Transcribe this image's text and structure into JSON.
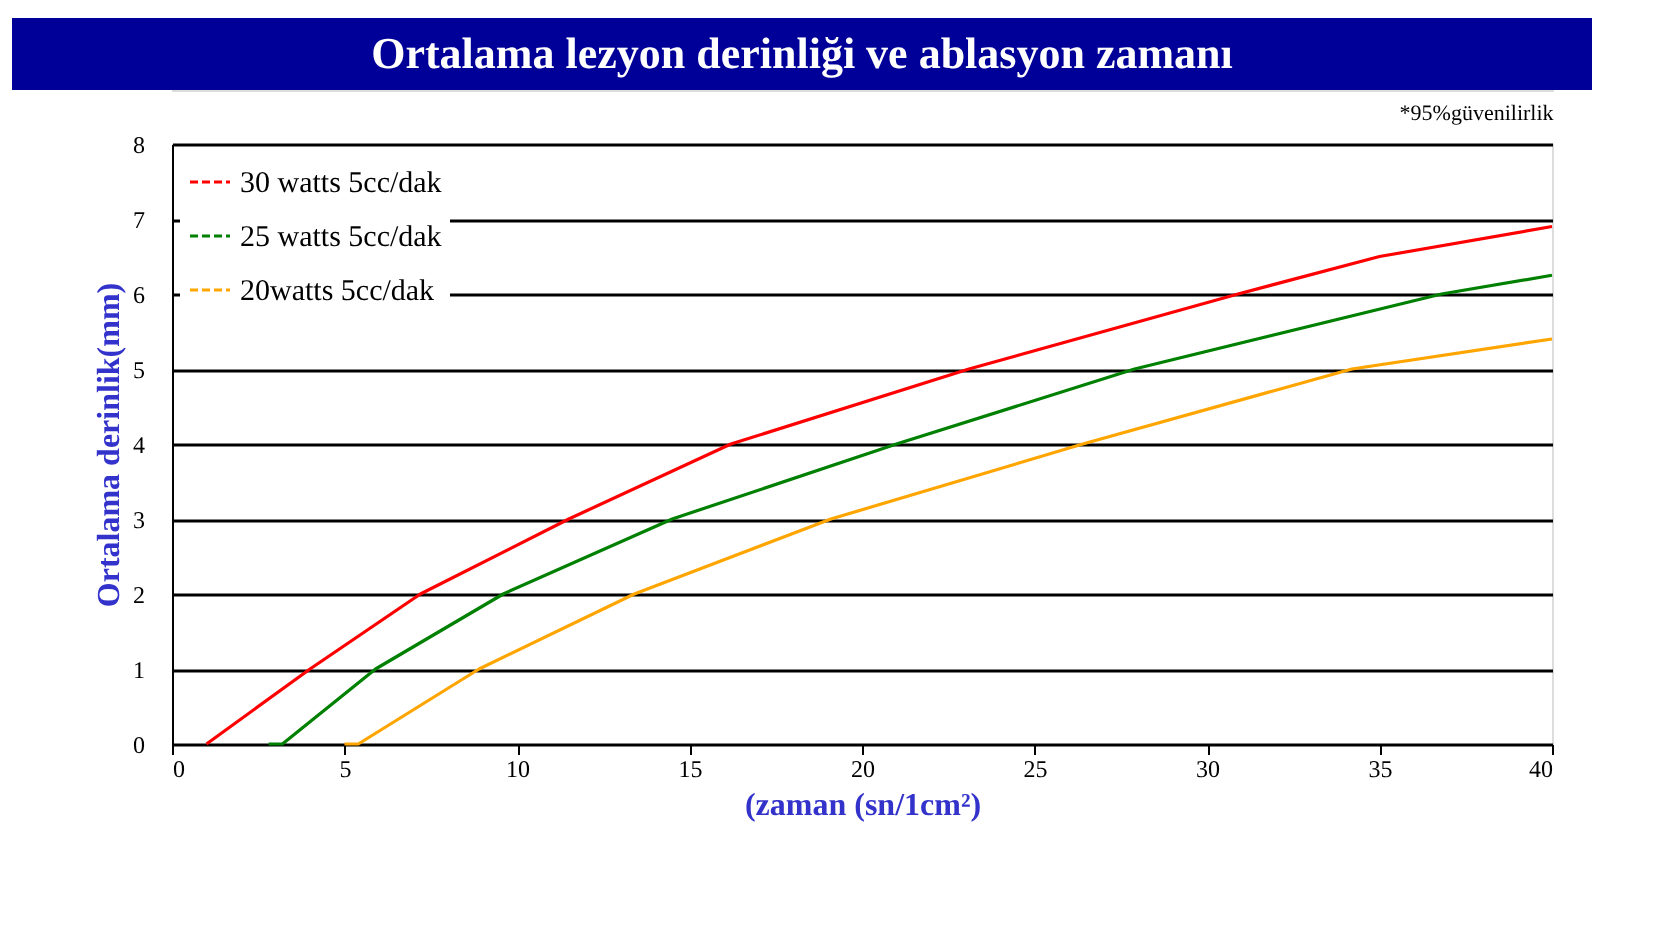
{
  "chart_data": {
    "type": "line",
    "title": "Ortalama lezyon derinliği ve ablasyon zamanı",
    "annotations": [
      "*95%güvenilirlik"
    ],
    "xlabel": "(zaman (sn/1cm²)",
    "ylabel": "Ortalama derinlik(mm)",
    "xlim": [
      0,
      40
    ],
    "xticks": [
      0,
      5,
      10,
      15,
      20,
      25,
      30,
      35,
      40
    ],
    "ylim": [
      0,
      8
    ],
    "yticks": [
      0,
      1,
      2,
      3,
      4,
      5,
      6,
      7,
      8
    ],
    "grid": "y",
    "legend": "top left",
    "line_style": "solid",
    "marker": "none",
    "series": [
      {
        "name": "30 watts 5cc/dak",
        "color": "#ff0000",
        "x": [
          1,
          4,
          7.2,
          11.5,
          16.2,
          23.1,
          30.9,
          35,
          40
        ],
        "values": [
          0,
          1,
          2,
          3,
          4,
          5,
          6,
          6.5,
          6.9
        ]
      },
      {
        "name": "25 watts 5cc/dak",
        "color": "#008000",
        "x": [
          2.8,
          3.2,
          5.9,
          9.6,
          14.5,
          21,
          27.9,
          36.8,
          40
        ],
        "values": [
          0,
          0,
          1,
          2,
          3,
          4,
          5,
          6,
          6.25
        ]
      },
      {
        "name": "20watts 5cc/dak",
        "color": "#ffa500",
        "x": [
          5,
          5.4,
          8.9,
          13.4,
          19.1,
          26.4,
          34.2,
          40
        ],
        "values": [
          0,
          0,
          1,
          2,
          3,
          4,
          5,
          5.4
        ]
      }
    ]
  }
}
